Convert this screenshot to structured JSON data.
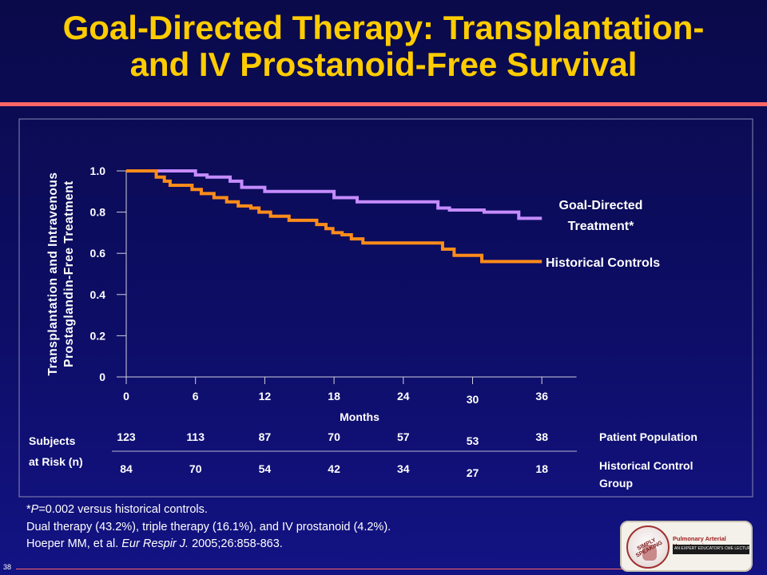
{
  "slide": {
    "title_line1": "Goal-Directed Therapy: Transplantation-",
    "title_line2": "and IV Prostanoid-Free Survival",
    "slide_number": "38"
  },
  "footnotes": {
    "line1_italic": "P",
    "line1_prefix": "*",
    "line1_rest": "=0.002 versus historical controls.",
    "line2": "Dual therapy (43.2%), triple therapy (16.1%), and IV prostanoid (4.2%).",
    "line3_prefix": "Hoeper MM, et al. ",
    "line3_journal": "Eur Respir J.",
    "line3_suffix": " 2005;26:858-863."
  },
  "logo": {
    "badge_text": "SIMPLY SPEAKING",
    "title": "Pulmonary Arterial Hypertension",
    "subtitle": "AN EXPERT EDUCATOR'S CME LECTURE SERIES"
  },
  "chart_data": {
    "type": "line",
    "step": true,
    "xlabel": "Months",
    "ylabel_line1": "Transplantation and Intravenous",
    "ylabel_line2": "Prostaglandin-Free Treatment",
    "xlim": [
      0,
      39
    ],
    "ylim": [
      0,
      1.0
    ],
    "x_ticks": [
      0,
      6,
      12,
      18,
      24,
      30,
      36
    ],
    "y_ticks": [
      0,
      0.2,
      0.4,
      0.6,
      0.8,
      1.0
    ],
    "y_tick_labels": [
      "0",
      "0.2",
      "0.4",
      "0.6",
      "0.8",
      "1.0"
    ],
    "series": [
      {
        "name": "Goal-Directed Treatment*",
        "label_line1": "Goal-Directed",
        "label_line2": "Treatment*",
        "color": "#c58cff",
        "x": [
          0,
          6,
          7,
          9,
          10,
          12,
          18,
          20,
          21,
          27,
          28,
          31,
          34
        ],
        "y": [
          1.0,
          0.98,
          0.97,
          0.95,
          0.92,
          0.9,
          0.87,
          0.85,
          0.85,
          0.82,
          0.81,
          0.8,
          0.77
        ]
      },
      {
        "name": "Historical Controls",
        "label_line1": "Historical Controls",
        "color": "#ff8c1a",
        "x": [
          0,
          2.6,
          3.3,
          3.8,
          5.7,
          6.5,
          7.6,
          8.7,
          9.7,
          10.8,
          11.5,
          12.5,
          14.1,
          16.5,
          17.3,
          17.9,
          18.7,
          19.5,
          20.5,
          22.5,
          27.4,
          28.4,
          30.8
        ],
        "y": [
          1.0,
          0.97,
          0.95,
          0.93,
          0.91,
          0.89,
          0.87,
          0.85,
          0.83,
          0.82,
          0.8,
          0.78,
          0.76,
          0.74,
          0.72,
          0.7,
          0.69,
          0.67,
          0.65,
          0.65,
          0.62,
          0.59,
          0.56
        ]
      }
    ],
    "risk_table": {
      "label_line1": "Subjects",
      "label_line2": "at Risk (n)",
      "rows": [
        {
          "name": "Patient Population",
          "label_line1": "Patient Population",
          "values": [
            123,
            113,
            87,
            70,
            57,
            53,
            38
          ]
        },
        {
          "name": "Historical Control Group",
          "label_line1": "Historical Control",
          "label_line2": "Group",
          "values": [
            84,
            70,
            54,
            42,
            34,
            27,
            18
          ]
        }
      ]
    }
  }
}
